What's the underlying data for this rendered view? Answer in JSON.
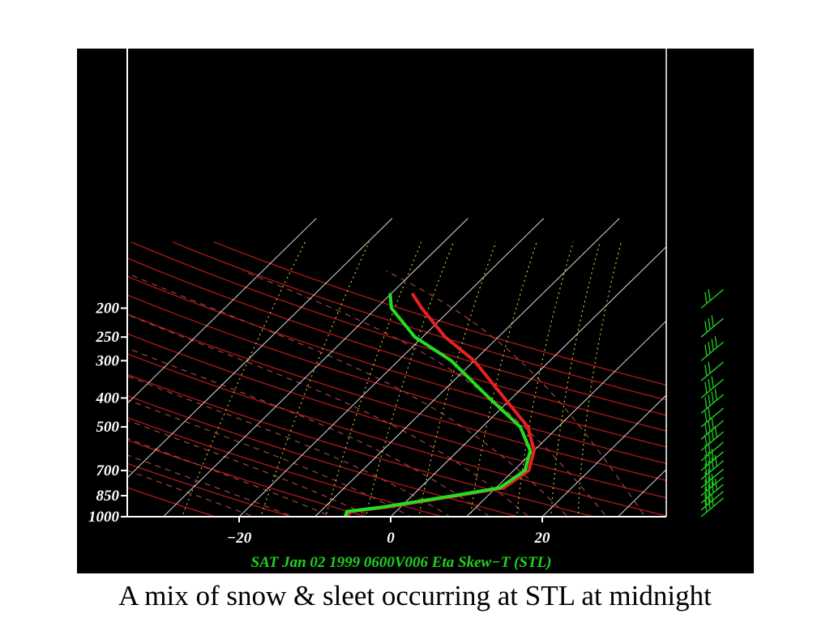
{
  "caption": "A mix of snow & sleet occurring at STL at midnight",
  "chart_data": {
    "type": "skew-t",
    "title": "SAT Jan 02 1999 0600V006 Eta Skew−T (STL)",
    "pressure_ticks": [
      "200",
      "250",
      "300",
      "400",
      "500",
      "700",
      "850",
      "1000"
    ],
    "pressure_values": [
      200,
      250,
      300,
      400,
      500,
      700,
      850,
      1000
    ],
    "temperature_ticks": [
      {
        "label": "−20",
        "value": -20
      },
      {
        "label": "0",
        "value": 0
      },
      {
        "label": "20",
        "value": 20
      }
    ],
    "xlim": [
      -34,
      36
    ],
    "ylim": [
      1000,
      180
    ],
    "y_scale": "log",
    "series": [
      {
        "color": "#e82020",
        "points": [
          {
            "p": 1000,
            "t": -5.8
          },
          {
            "p": 960,
            "t": -6.0
          },
          {
            "p": 930,
            "t": -2
          },
          {
            "p": 850,
            "t": 6.0
          },
          {
            "p": 800,
            "t": 11
          },
          {
            "p": 700,
            "t": 12
          },
          {
            "p": 600,
            "t": 10
          },
          {
            "p": 500,
            "t": 6
          },
          {
            "p": 400,
            "t": -1
          },
          {
            "p": 300,
            "t": -10
          },
          {
            "p": 250,
            "t": -17
          },
          {
            "p": 200,
            "t": -24
          },
          {
            "p": 180,
            "t": -27
          }
        ]
      },
      {
        "color": "#20e020",
        "points": [
          {
            "p": 1000,
            "t": -6.0
          },
          {
            "p": 960,
            "t": -6.5
          },
          {
            "p": 930,
            "t": -2.5
          },
          {
            "p": 850,
            "t": 5.5
          },
          {
            "p": 800,
            "t": 10.5
          },
          {
            "p": 700,
            "t": 11.5
          },
          {
            "p": 600,
            "t": 9.5
          },
          {
            "p": 500,
            "t": 5
          },
          {
            "p": 400,
            "t": -3
          },
          {
            "p": 300,
            "t": -13
          },
          {
            "p": 250,
            "t": -21
          },
          {
            "p": 200,
            "t": -28
          },
          {
            "p": 180,
            "t": -30
          }
        ]
      }
    ],
    "isotherms": [
      -50,
      -40,
      -30,
      -20,
      -10,
      0,
      10,
      20,
      30,
      40
    ],
    "dry_adiabats_theta": [
      250,
      260,
      270,
      280,
      290,
      300,
      310,
      320,
      330,
      340,
      350,
      360,
      370,
      380,
      390
    ],
    "moist_adiabats_t1000": [
      -15,
      -10,
      -5,
      0,
      5,
      10,
      15,
      20,
      25,
      30,
      35
    ],
    "mixing_ratios": [
      0.4,
      1,
      2,
      3,
      5,
      8,
      12,
      16,
      20
    ],
    "wind_barb_pressures": [
      200,
      250,
      300,
      350,
      400,
      450,
      500,
      550,
      600,
      650,
      700,
      750,
      800,
      850,
      900,
      950,
      1000
    ],
    "colors": {
      "background": "#000000",
      "isotherm": "#ffffff",
      "dry_adiabat": "#b01818",
      "moist_adiabat": "#b04848",
      "mixing_ratio": "#d8d040",
      "wind_barb": "#20d020",
      "footer_text": "#20d020"
    }
  }
}
